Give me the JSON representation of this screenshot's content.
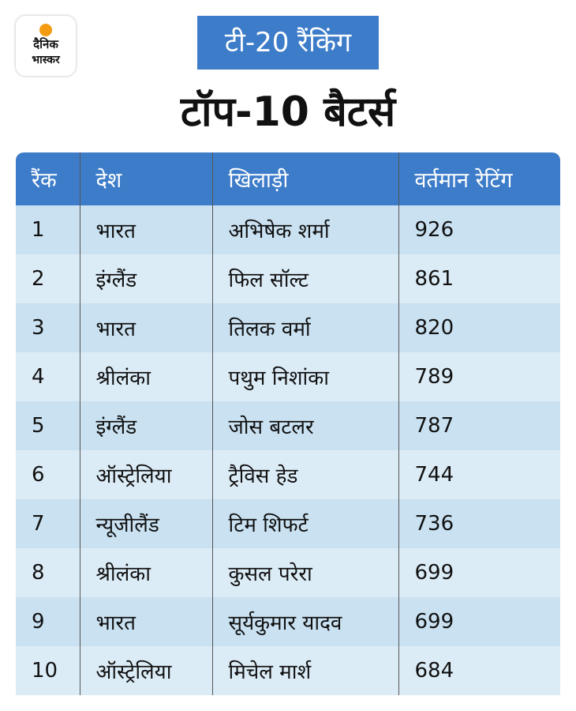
{
  "logo": {
    "line1": "दैनिक",
    "line2": "भास्कर"
  },
  "badge": "टी-20 रैंकिंग",
  "title": "टॉप-10 बैटर्स",
  "table": {
    "header": [
      "रैंक",
      "देश",
      "खिलाड़ी",
      "वर्तमान रेटिंग"
    ],
    "rows": [
      [
        1,
        "भारत",
        "अभिषेक शर्मा",
        926
      ],
      [
        2,
        "इंग्लैंड",
        "फिल सॉल्ट",
        861
      ],
      [
        3,
        "भारत",
        "तिलक वर्मा",
        820
      ],
      [
        4,
        "श्रीलंका",
        "पथुम निशांका",
        789
      ],
      [
        5,
        "इंग्लैंड",
        "जोस बटलर",
        787
      ],
      [
        6,
        "ऑस्ट्रेलिया",
        "ट्रैविस हेड",
        744
      ],
      [
        7,
        "न्यूजीलैंड",
        "टिम शिफर्ट",
        736
      ],
      [
        8,
        "श्रीलंका",
        "कुसल परेरा",
        699
      ],
      [
        9,
        "भारत",
        "सूर्यकुमार यादव",
        699
      ],
      [
        10,
        "ऑस्ट्रेलिया",
        "मिचेल मार्श",
        684
      ]
    ]
  }
}
